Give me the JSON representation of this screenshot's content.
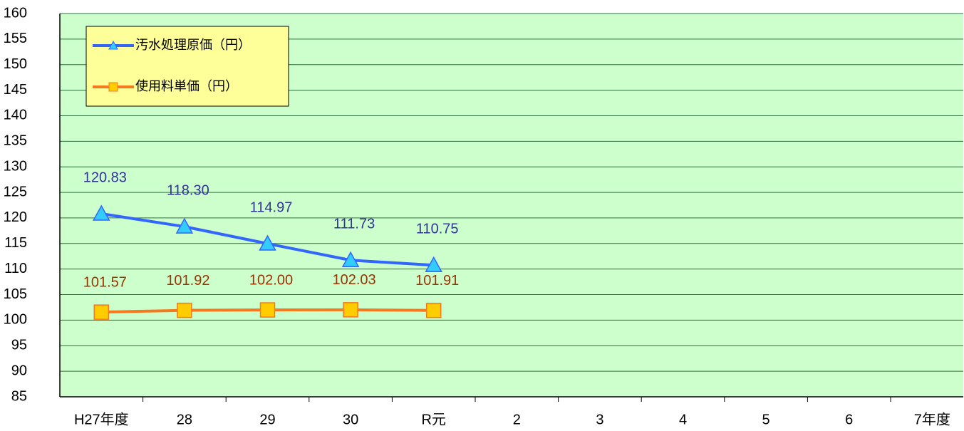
{
  "chart_data": {
    "type": "line",
    "categories": [
      "H27年度",
      "28",
      "29",
      "30",
      "R元",
      "2",
      "3",
      "4",
      "5",
      "6",
      "7年度"
    ],
    "series": [
      {
        "name": "汚水処理原価（円）",
        "color": "#3366ff",
        "marker": "triangle",
        "marker_color": "#33ccff",
        "label_color": "#333399",
        "values": [
          120.83,
          118.3,
          114.97,
          111.73,
          110.75,
          null,
          null,
          null,
          null,
          null,
          null
        ],
        "value_labels": [
          "120.83",
          "118.30",
          "114.97",
          "111.73",
          "110.75",
          null,
          null,
          null,
          null,
          null,
          null
        ]
      },
      {
        "name": "使用料単価（円）",
        "color": "#f57a1f",
        "marker": "square",
        "marker_color": "#ffcc00",
        "label_color": "#993300",
        "values": [
          101.57,
          101.92,
          102.0,
          102.03,
          101.91,
          null,
          null,
          null,
          null,
          null,
          null
        ],
        "value_labels": [
          "101.57",
          "101.92",
          "102.00",
          "102.03",
          "101.91",
          null,
          null,
          null,
          null,
          null,
          null
        ]
      }
    ],
    "ylim": [
      85,
      160
    ],
    "yticks": [
      85,
      90,
      95,
      100,
      105,
      110,
      115,
      120,
      125,
      130,
      135,
      140,
      145,
      150,
      155,
      160
    ],
    "grid": true,
    "legend": "upper left"
  }
}
